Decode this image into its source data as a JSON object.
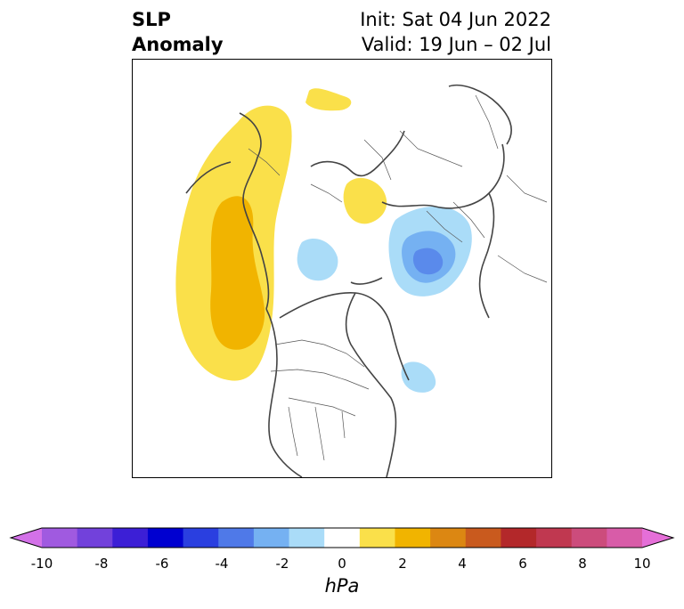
{
  "title": {
    "left_line1": "SLP",
    "left_line2": "Anomaly",
    "init": "Init: Sat 04 Jun 2022",
    "valid": "Valid: 19 Jun – 02 Jul"
  },
  "map": {
    "projection": "polar stereographic, North Pole centered",
    "anomaly_regions": [
      {
        "region": "North Pacific / Alaska coast",
        "level": "positive",
        "min_value": 1,
        "peak_value": 3
      },
      {
        "region": "Scandinavia / Northern Europe",
        "level": "positive",
        "min_value": 1,
        "peak_value": 2
      },
      {
        "region": "Northern Europe (small)",
        "level": "positive",
        "min_value": 1,
        "peak_value": 2
      },
      {
        "region": "Siberia / Lena region",
        "level": "negative",
        "min_value": -1,
        "peak_value": -3
      },
      {
        "region": "East Siberian Sea",
        "level": "negative",
        "min_value": -1,
        "peak_value": -2
      },
      {
        "region": "North Atlantic / Labrador Sea",
        "level": "negative",
        "min_value": -1,
        "peak_value": -2
      }
    ]
  },
  "colorbar": {
    "units": "hPa",
    "ticks": [
      "-10",
      "-8",
      "-6",
      "-4",
      "-2",
      "0",
      "2",
      "4",
      "6",
      "8",
      "10"
    ],
    "extend": "both",
    "colors": [
      "#d371e8",
      "#a05ae0",
      "#7241db",
      "#3c1fd6",
      "#0000d0",
      "#2a3fe0",
      "#4f79e8",
      "#75b1f2",
      "#aadcf8",
      "#ffffff",
      "#fae04a",
      "#f1b400",
      "#dc8712",
      "#c95a1e",
      "#b3282a",
      "#c03850",
      "#cc4c7c",
      "#d85ca8",
      "#e56fd8"
    ]
  }
}
